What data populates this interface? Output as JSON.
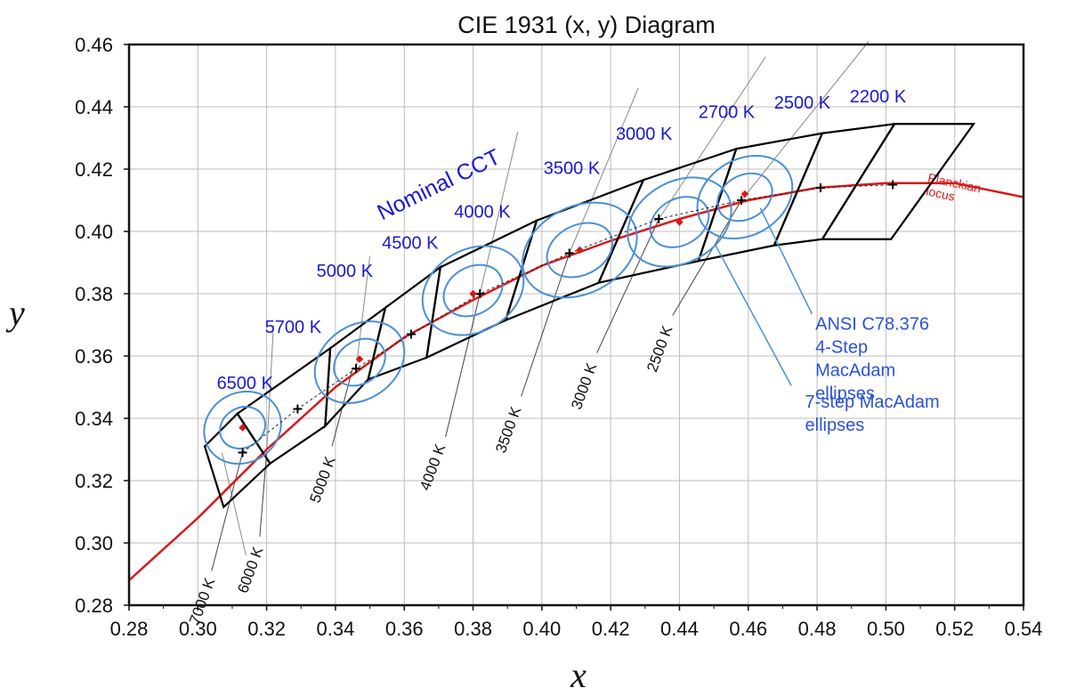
{
  "chart_data": {
    "type": "scatter",
    "title": "CIE 1931 (x, y) Diagram",
    "xlabel": "x",
    "ylabel": "y",
    "xlim": [
      0.28,
      0.54
    ],
    "ylim": [
      0.28,
      0.46
    ],
    "x_ticks": [
      "0.28",
      "0.30",
      "0.32",
      "0.34",
      "0.36",
      "0.38",
      "0.40",
      "0.42",
      "0.44",
      "0.46",
      "0.48",
      "0.50",
      "0.52",
      "0.54"
    ],
    "y_ticks": [
      "0.28",
      "0.30",
      "0.32",
      "0.34",
      "0.36",
      "0.38",
      "0.40",
      "0.42",
      "0.44",
      "0.46"
    ],
    "grid": true,
    "planckian_locus": {
      "label": "Planckian locus",
      "label_lines": [
        "Planckian",
        "locus"
      ],
      "color": "#d81818",
      "points": [
        [
          0.28,
          0.288
        ],
        [
          0.3,
          0.308
        ],
        [
          0.32,
          0.33
        ],
        [
          0.34,
          0.35
        ],
        [
          0.36,
          0.366
        ],
        [
          0.38,
          0.378
        ],
        [
          0.4,
          0.389
        ],
        [
          0.42,
          0.397
        ],
        [
          0.44,
          0.404
        ],
        [
          0.46,
          0.41
        ],
        [
          0.48,
          0.414
        ],
        [
          0.5,
          0.4155
        ],
        [
          0.52,
          0.4155
        ],
        [
          0.54,
          0.411
        ]
      ]
    },
    "nominal_cct": {
      "label": "Nominal CCT",
      "labels": [
        "6500 K",
        "5700 K",
        "5000 K",
        "4500 K",
        "4000 K",
        "3500 K",
        "3000 K",
        "2700 K",
        "2500 K",
        "2200 K"
      ],
      "centers": [
        [
          0.313,
          0.329
        ],
        [
          0.329,
          0.343
        ],
        [
          0.346,
          0.356
        ],
        [
          0.362,
          0.367
        ],
        [
          0.382,
          0.38
        ],
        [
          0.408,
          0.393
        ],
        [
          0.434,
          0.404
        ],
        [
          0.458,
          0.41
        ],
        [
          0.481,
          0.414
        ],
        [
          0.502,
          0.415
        ]
      ],
      "target_points": [
        [
          0.313,
          0.337
        ],
        [
          0.347,
          0.359
        ],
        [
          0.38,
          0.38
        ],
        [
          0.411,
          0.394
        ],
        [
          0.44,
          0.403
        ],
        [
          0.459,
          0.412
        ]
      ]
    },
    "quadrangles": [
      [
        [
          0.302,
          0.331
        ],
        [
          0.3115,
          0.3415
        ],
        [
          0.321,
          0.3255
        ],
        [
          0.3075,
          0.3115
        ]
      ],
      [
        [
          0.3115,
          0.3415
        ],
        [
          0.3385,
          0.3625
        ],
        [
          0.337,
          0.3375
        ],
        [
          0.321,
          0.3255
        ]
      ],
      [
        [
          0.3385,
          0.3625
        ],
        [
          0.3545,
          0.3755
        ],
        [
          0.3495,
          0.3525
        ],
        [
          0.337,
          0.3375
        ]
      ],
      [
        [
          0.3545,
          0.3755
        ],
        [
          0.3705,
          0.3885
        ],
        [
          0.3665,
          0.3595
        ],
        [
          0.3495,
          0.3525
        ]
      ],
      [
        [
          0.3705,
          0.3885
        ],
        [
          0.3985,
          0.4035
        ],
        [
          0.3895,
          0.3715
        ],
        [
          0.3665,
          0.3595
        ]
      ],
      [
        [
          0.3985,
          0.4035
        ],
        [
          0.4295,
          0.4165
        ],
        [
          0.4165,
          0.3835
        ],
        [
          0.3895,
          0.3715
        ]
      ],
      [
        [
          0.4295,
          0.4165
        ],
        [
          0.4565,
          0.4265
        ],
        [
          0.4455,
          0.3905
        ],
        [
          0.4165,
          0.3835
        ]
      ],
      [
        [
          0.4565,
          0.4265
        ],
        [
          0.4815,
          0.4315
        ],
        [
          0.4675,
          0.3955
        ],
        [
          0.4455,
          0.3905
        ]
      ],
      [
        [
          0.4815,
          0.4315
        ],
        [
          0.5025,
          0.4345
        ],
        [
          0.4815,
          0.3975
        ],
        [
          0.4675,
          0.3955
        ]
      ],
      [
        [
          0.5025,
          0.4345
        ],
        [
          0.5255,
          0.4345
        ],
        [
          0.5015,
          0.3975
        ],
        [
          0.4815,
          0.3975
        ]
      ]
    ],
    "ellipses_4step": [
      {
        "cx": 0.313,
        "cy": 0.337,
        "rx": 0.0068,
        "ry": 0.0064,
        "rot": -30
      },
      {
        "cx": 0.347,
        "cy": 0.358,
        "rx": 0.008,
        "ry": 0.0068,
        "rot": -35
      },
      {
        "cx": 0.38,
        "cy": 0.381,
        "rx": 0.009,
        "ry": 0.0076,
        "rot": -30
      },
      {
        "cx": 0.411,
        "cy": 0.394,
        "rx": 0.01,
        "ry": 0.008,
        "rot": -27
      },
      {
        "cx": 0.44,
        "cy": 0.403,
        "rx": 0.009,
        "ry": 0.0074,
        "rot": -30
      },
      {
        "cx": 0.459,
        "cy": 0.411,
        "rx": 0.0084,
        "ry": 0.007,
        "rot": -30
      }
    ],
    "ellipses_7step": [
      {
        "cx": 0.313,
        "cy": 0.337,
        "rx": 0.0115,
        "ry": 0.0112,
        "rot": -30
      },
      {
        "cx": 0.347,
        "cy": 0.358,
        "rx": 0.014,
        "ry": 0.0118,
        "rot": -35
      },
      {
        "cx": 0.38,
        "cy": 0.381,
        "rx": 0.0155,
        "ry": 0.0132,
        "rot": -30
      },
      {
        "cx": 0.411,
        "cy": 0.394,
        "rx": 0.0175,
        "ry": 0.014,
        "rot": -27
      },
      {
        "cx": 0.44,
        "cy": 0.403,
        "rx": 0.016,
        "ry": 0.013,
        "rot": -30
      },
      {
        "cx": 0.459,
        "cy": 0.411,
        "rx": 0.0146,
        "ry": 0.0122,
        "rot": -30
      }
    ],
    "isotherm_labels": [
      "7000 K",
      "6000 K",
      "5000 K",
      "4000 K",
      "3500 K",
      "3000 K",
      "2500 K"
    ],
    "annotations": {
      "ansi_lines": [
        "ANSI C78.376",
        "4-Step",
        "MacAdam",
        "ellipses"
      ],
      "seven_step_lines": [
        "7-step MacAdam",
        "ellipses"
      ]
    },
    "colors": {
      "locus": "#d81818",
      "ellipse": "#4a90d6",
      "quadrangle": "#000000",
      "grid": "#bdbdbd",
      "cct_label": "#1a1ad0",
      "annotation": "#2b52d6",
      "isotherm": "#8a8a8a"
    }
  }
}
